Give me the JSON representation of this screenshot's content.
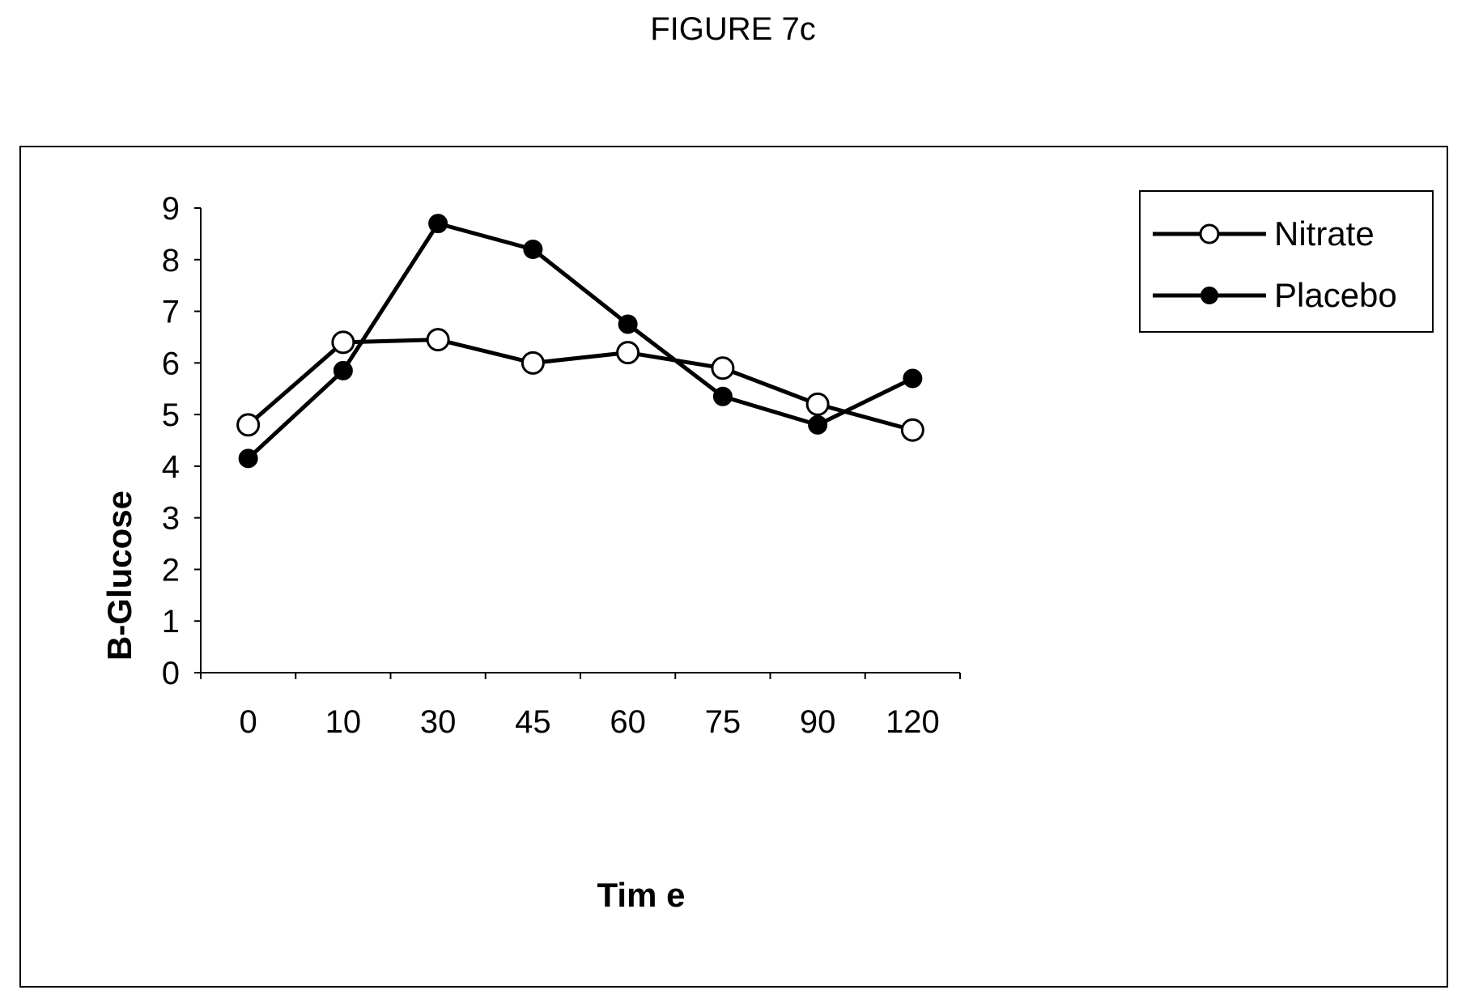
{
  "title": "FIGURE 7c",
  "chart_data": {
    "type": "line",
    "xlabel": "Tim e",
    "ylabel": "B-Glucose",
    "categories": [
      "0",
      "10",
      "30",
      "45",
      "60",
      "75",
      "90",
      "120"
    ],
    "ylim": [
      0,
      9
    ],
    "yticks": [
      "0",
      "1",
      "2",
      "3",
      "4",
      "5",
      "6",
      "7",
      "8",
      "9"
    ],
    "grid": false,
    "legend_position": "top-right",
    "series": [
      {
        "name": "Nitrate",
        "marker": "open-circle",
        "color": "#000000",
        "values": [
          4.8,
          6.4,
          6.45,
          6.0,
          6.2,
          5.9,
          5.2,
          4.7
        ]
      },
      {
        "name": "Placebo",
        "marker": "filled-circle",
        "color": "#000000",
        "values": [
          4.15,
          5.85,
          8.7,
          8.2,
          6.75,
          5.35,
          4.8,
          5.7
        ]
      }
    ]
  }
}
